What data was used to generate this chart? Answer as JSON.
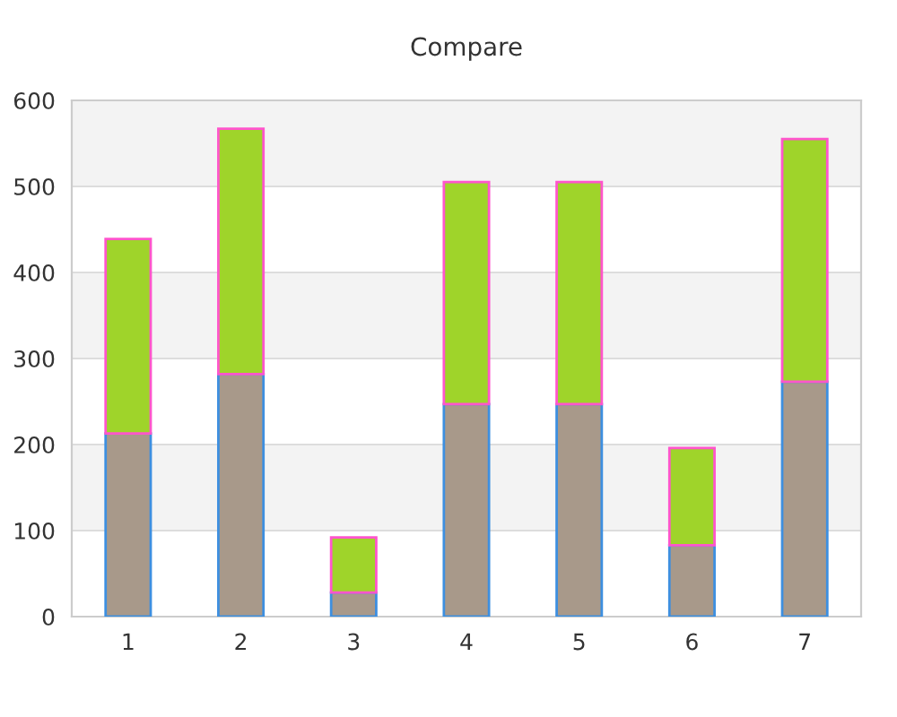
{
  "chart_data": {
    "type": "bar",
    "title": "Compare",
    "stacked": true,
    "categories": [
      "1",
      "2",
      "3",
      "4",
      "5",
      "6",
      "7"
    ],
    "series": [
      {
        "color": "#a8998a",
        "values": [
          213,
          282,
          28,
          247,
          247,
          83,
          273
        ]
      },
      {
        "color": "#9fd42a",
        "values": [
          226,
          285,
          64,
          258,
          258,
          113,
          282
        ]
      }
    ],
    "ylim": [
      0,
      600
    ],
    "yticks": [
      0,
      100,
      200,
      300,
      400,
      500,
      600
    ],
    "grid": "y",
    "bands": [
      {
        "axis": "y",
        "from": 100,
        "to": 200,
        "color": "#f3f3f3"
      },
      {
        "axis": "y",
        "from": 300,
        "to": 400,
        "color": "#f3f3f3"
      },
      {
        "axis": "y",
        "from": 500,
        "to": 600,
        "color": "#f3f3f3"
      }
    ]
  }
}
